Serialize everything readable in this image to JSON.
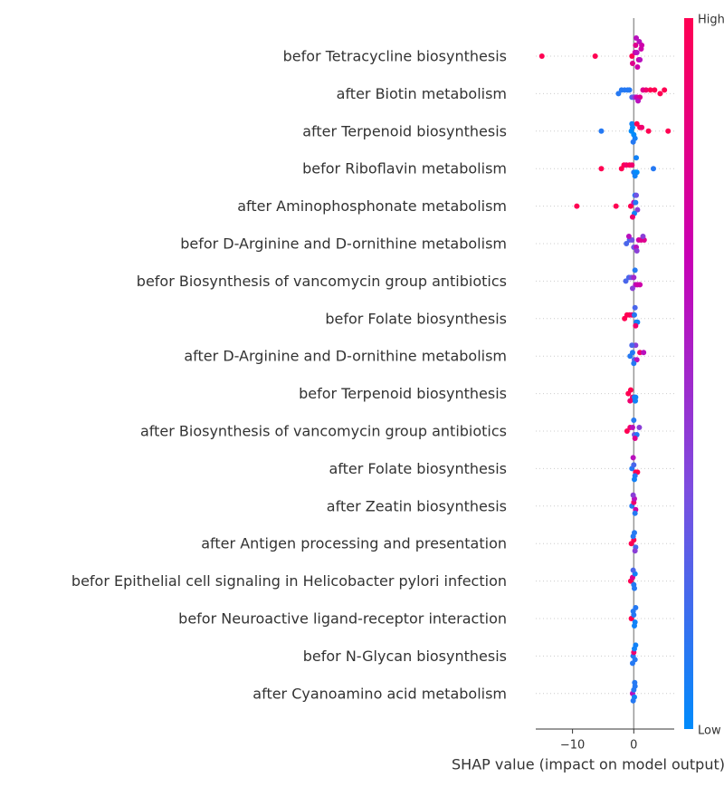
{
  "chart_data": {
    "type": "beeswarm",
    "xlabel": "SHAP value (impact on model output)",
    "xlim": [
      -16,
      6.6
    ],
    "xticks": [
      {
        "value": -10,
        "label": "−10"
      },
      0
    ],
    "colormap": [
      "#008bfb",
      "#7b4ee0",
      "#c800b4",
      "#ff0052"
    ],
    "colorbar_labels": {
      "high": "High",
      "low": "Low"
    },
    "grid": true,
    "series": [
      {
        "name": "befor Tetracycline biosynthesis",
        "values": [
          -15,
          -6.3,
          -0.3,
          0.2,
          0.5,
          0.8,
          1.0,
          1.2,
          0.3,
          0.6,
          0.9,
          -0.2,
          0.4,
          1.3
        ],
        "feature_values": [
          1,
          1,
          1,
          0.7,
          0.6,
          0.7,
          0.6,
          0.7,
          0.8,
          0.7,
          0.6,
          0.8,
          0.6,
          0.7
        ]
      },
      {
        "name": "after Biotin metabolism",
        "values": [
          -2.5,
          -2,
          -1.5,
          -1,
          -0.7,
          -0.3,
          0,
          0.3,
          0.5,
          1,
          1.5,
          2,
          2.7,
          3.4,
          4.3,
          5,
          0.7
        ],
        "feature_values": [
          0.1,
          0.1,
          0.1,
          0.1,
          0.1,
          0.2,
          0.3,
          0.5,
          0.7,
          0.8,
          0.8,
          0.9,
          1,
          1,
          1,
          1,
          0.6
        ]
      },
      {
        "name": "after Terpenoid biosynthesis",
        "values": [
          -5.3,
          -0.4,
          -0.2,
          0,
          -0.3,
          0.2,
          0.5,
          1,
          1.3,
          2.4,
          5.6,
          -0.1
        ],
        "feature_values": [
          0.1,
          0,
          0,
          0,
          0.05,
          0.05,
          1,
          1,
          0.9,
          1,
          1,
          0.1
        ]
      },
      {
        "name": "befor Riboflavin metabolism",
        "values": [
          -5.3,
          -2,
          -1.6,
          -1.2,
          -0.7,
          -0.3,
          0,
          0.3,
          0.5,
          0.2,
          0.4,
          3.2
        ],
        "feature_values": [
          1,
          1,
          1,
          0.9,
          1,
          0.9,
          0.1,
          0,
          0,
          0.05,
          0.05,
          0.1
        ]
      },
      {
        "name": "after Aminophosphonate metabolism",
        "values": [
          -9.3,
          -2.9,
          -0.5,
          0,
          0.3,
          0.6,
          0.1,
          0.2,
          0.4,
          -0.2
        ],
        "feature_values": [
          1,
          1,
          1,
          0.6,
          0.1,
          0.4,
          0.05,
          0.1,
          0.3,
          0.9
        ]
      },
      {
        "name": "befor D-Arginine and D-ornithine metabolism",
        "values": [
          -1.2,
          -0.7,
          -0.3,
          0,
          0.4,
          0.8,
          1.2,
          1.7,
          1.5,
          0.5,
          -0.8
        ],
        "feature_values": [
          0.2,
          0.2,
          0.3,
          0.3,
          0.6,
          0.7,
          0.8,
          0.8,
          0.4,
          0.4,
          0.6
        ]
      },
      {
        "name": "befor Biosynthesis of vancomycin group antibiotics",
        "values": [
          -1.3,
          -0.8,
          -0.4,
          0,
          0.3,
          0.6,
          1,
          -0.2,
          0.2
        ],
        "feature_values": [
          0.2,
          0.2,
          0.3,
          0.5,
          0.6,
          0.7,
          0.7,
          0.4,
          0.1
        ]
      },
      {
        "name": "befor Folate biosynthesis",
        "values": [
          -1.5,
          -1.1,
          -0.7,
          -0.3,
          0.1,
          0.4,
          0.6,
          0.3,
          0.2
        ],
        "feature_values": [
          1,
          1,
          1,
          0.9,
          0.1,
          0.1,
          0.05,
          0.9,
          0.2
        ]
      },
      {
        "name": "after D-Arginine and D-ornithine metabolism",
        "values": [
          -0.6,
          -0.2,
          0.1,
          0.5,
          1,
          1.6,
          0,
          0.3,
          -0.3
        ],
        "feature_values": [
          0.1,
          0.1,
          0.2,
          0.6,
          0.9,
          0.6,
          0.1,
          0.4,
          0.2
        ]
      },
      {
        "name": "befor Terpenoid biosynthesis",
        "values": [
          -0.9,
          -0.5,
          -0.2,
          0.1,
          0.3,
          0.2,
          -0.6,
          0.25
        ],
        "feature_values": [
          1,
          1,
          0.9,
          0.1,
          0.05,
          0.1,
          0.9,
          0.05
        ]
      },
      {
        "name": "after Biosynthesis of vancomycin group antibiotics",
        "values": [
          -1.1,
          -0.6,
          -0.2,
          0.1,
          0.5,
          0.9,
          0.2,
          0
        ],
        "feature_values": [
          1,
          0.9,
          0.6,
          0.3,
          0.1,
          0.4,
          0.8,
          0.1
        ]
      },
      {
        "name": "after Folate biosynthesis",
        "values": [
          -0.3,
          0,
          0.3,
          0.6,
          0.2,
          -0.1,
          0.1
        ],
        "feature_values": [
          0.1,
          0.2,
          1,
          1,
          0.1,
          0.6,
          0.05
        ]
      },
      {
        "name": "after Zeatin biosynthesis",
        "values": [
          -0.3,
          0,
          0.3,
          0.1,
          0.2,
          -0.1
        ],
        "feature_values": [
          0.1,
          0.9,
          0.7,
          0.6,
          0.1,
          0.4
        ]
      },
      {
        "name": "after Antigen processing and presentation",
        "values": [
          -0.4,
          0,
          0.3,
          -0.1,
          0.2,
          0.1
        ],
        "feature_values": [
          1,
          1,
          0.2,
          0.1,
          0.4,
          0.1
        ]
      },
      {
        "name": "befor Epithelial cell signaling in Helicobacter pylori infection",
        "values": [
          -0.5,
          -0.2,
          0,
          0.2,
          0.1,
          -0.1
        ],
        "feature_values": [
          1,
          0.8,
          0.1,
          0.05,
          0.1,
          0.2
        ]
      },
      {
        "name": "befor Neuroactive ligand-receptor interaction",
        "values": [
          -0.4,
          0,
          0.2,
          -0.1,
          0.1,
          0.3
        ],
        "feature_values": [
          1,
          0.1,
          0.05,
          0.1,
          0.05,
          0.1
        ]
      },
      {
        "name": "befor N-Glycan biosynthesis",
        "values": [
          -0.1,
          0,
          0.2,
          0.1,
          -0.2,
          0.3
        ],
        "feature_values": [
          0.1,
          0.9,
          0.1,
          0.05,
          0.1,
          0.05
        ]
      },
      {
        "name": "after Cyanoamino acid metabolism",
        "values": [
          -0.2,
          0,
          0.1,
          0.2,
          -0.1,
          0.15
        ],
        "feature_values": [
          0.6,
          0.1,
          0.05,
          0.1,
          0.1,
          0.1
        ]
      }
    ]
  }
}
